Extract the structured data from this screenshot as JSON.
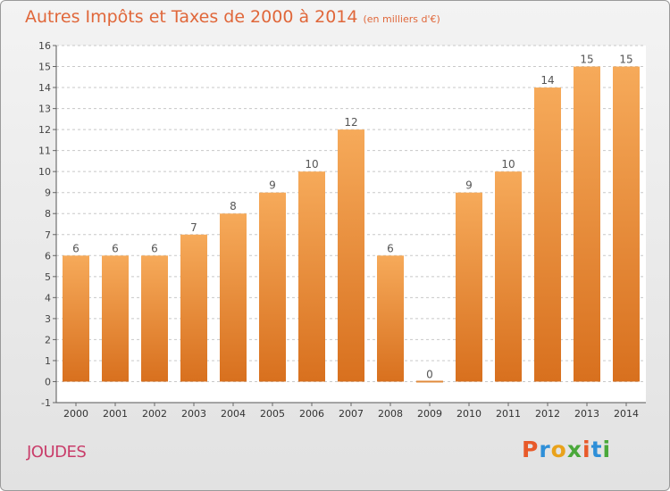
{
  "header": {
    "title": "Autres Impôts et Taxes de 2000 à 2014",
    "subtitle": "(en milliers d'€)"
  },
  "footer": {
    "commune": "JOUDES",
    "logo": "Proxiti"
  },
  "colors": {
    "title": "#e0673a",
    "commune": "#c93d6a",
    "bar_light": "#f6aa5a",
    "bar_dark": "#d8701e",
    "logo_letters": [
      "#e85a2a",
      "#2e8fd8",
      "#e9a21b",
      "#4aa83a",
      "#e85a2a",
      "#2e8fd8",
      "#4aa83a"
    ]
  },
  "chart_data": {
    "type": "bar",
    "categories": [
      "2000",
      "2001",
      "2002",
      "2003",
      "2004",
      "2005",
      "2006",
      "2007",
      "2008",
      "2009",
      "2010",
      "2011",
      "2012",
      "2013",
      "2014"
    ],
    "values": [
      6,
      6,
      6,
      7,
      8,
      9,
      10,
      12,
      6,
      0,
      9,
      10,
      14,
      15,
      15
    ],
    "yticks": [
      -1,
      0,
      1,
      2,
      3,
      4,
      5,
      6,
      7,
      8,
      9,
      10,
      11,
      12,
      13,
      14,
      15,
      16
    ],
    "ylim": [
      -1,
      16
    ],
    "grid": "horizontal dashed"
  }
}
